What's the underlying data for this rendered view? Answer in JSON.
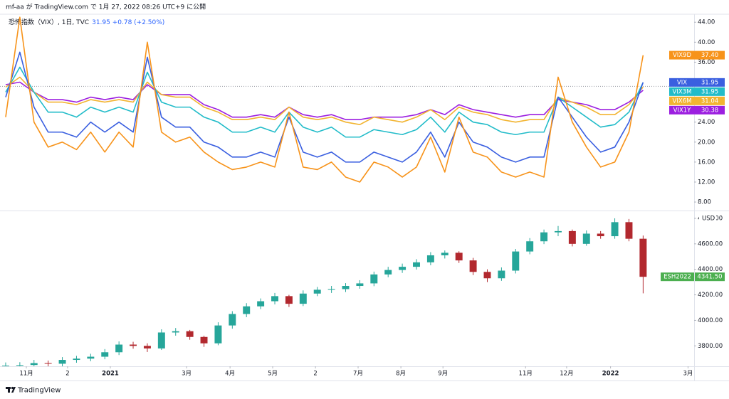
{
  "header": {
    "text": "mf-aa が TradingView.com で 1月 27, 2022 08:26 UTC+9 に公開"
  },
  "footer": {
    "brand": "TradingView"
  },
  "chart_data": [
    {
      "type": "line",
      "legend_title": "恐怖指数（VIX）, 1日, TVC",
      "legend_value": "31.95 +0.78 (+2.50%)",
      "legend_value_color": "#2962ff",
      "prev_close": 31.17,
      "xlim": [
        -0.4,
        48.6
      ],
      "ylim": [
        6.3,
        45.6
      ],
      "yticks": [
        {
          "value": 8,
          "label": "8.00"
        },
        {
          "value": 12,
          "label": "12.00"
        },
        {
          "value": 16,
          "label": "16.00"
        },
        {
          "value": 20,
          "label": "20.00"
        },
        {
          "value": 24,
          "label": "24.00"
        },
        {
          "value": 36,
          "label": "36.00"
        },
        {
          "value": 40,
          "label": "40.00"
        },
        {
          "value": 44,
          "label": "44.00"
        }
      ],
      "series": [
        {
          "name": "VIX9D",
          "color": "#f7931a",
          "last_label": "37.40",
          "values": [
            25,
            45,
            24,
            19,
            20,
            18.5,
            22,
            18,
            22,
            19,
            40,
            22,
            20,
            21,
            18,
            16,
            14.5,
            15,
            16,
            15,
            26,
            15,
            14.5,
            16,
            13,
            12,
            16,
            15,
            13,
            15,
            21,
            14,
            25,
            18,
            17,
            14,
            13,
            14,
            13,
            33,
            24,
            19,
            15,
            16,
            22,
            37.4
          ]
        },
        {
          "name": "VIX",
          "color": "#3a5fe0",
          "last_label": "31.95",
          "values": [
            29,
            38,
            27,
            22,
            22,
            21,
            24,
            22,
            24,
            22,
            37,
            25,
            23,
            23,
            20,
            19,
            17,
            17,
            18,
            17,
            25,
            18,
            17,
            18,
            16,
            16,
            18,
            17,
            16,
            18,
            22,
            17,
            24,
            20,
            19,
            17,
            16,
            17,
            17,
            29,
            25,
            21,
            18,
            19,
            24,
            31.95
          ]
        },
        {
          "name": "VIX3M",
          "color": "#22bcc9",
          "last_label": "31.95",
          "values": [
            30,
            35,
            30,
            26,
            26,
            25,
            27,
            26,
            27,
            26,
            34,
            28,
            27,
            27,
            25,
            24,
            22,
            22,
            23,
            22,
            26,
            23,
            22,
            23,
            21,
            21,
            22.5,
            22,
            21.5,
            22.5,
            25,
            22,
            26,
            24,
            23.5,
            22,
            21.5,
            22,
            22,
            29,
            27,
            25,
            23,
            23.5,
            26,
            31.95
          ]
        },
        {
          "name": "VIX6M",
          "color": "#f2b431",
          "last_label": "31.04",
          "values": [
            31,
            33,
            30,
            28,
            28,
            27.5,
            28.5,
            28,
            28.5,
            28,
            32,
            29.5,
            29,
            29,
            27,
            26,
            24.5,
            24.5,
            25,
            24.5,
            27,
            25,
            24.5,
            25,
            24,
            23.5,
            25,
            24.5,
            24,
            25,
            26.5,
            24.5,
            27,
            26,
            25.5,
            24.5,
            24,
            24.5,
            24.5,
            29,
            28,
            27,
            25.5,
            25.5,
            27.5,
            31.04
          ]
        },
        {
          "name": "VIX1Y",
          "color": "#9c1fe0",
          "last_label": "30.38",
          "values": [
            31.5,
            32,
            30,
            28.5,
            28.5,
            28,
            29,
            28.5,
            29,
            28.5,
            31.5,
            29.5,
            29.5,
            29.5,
            27.5,
            26.5,
            25,
            25,
            25.5,
            25,
            27,
            25.5,
            25,
            25.5,
            24.5,
            24.5,
            25,
            25,
            25,
            25.5,
            26.5,
            25.5,
            27.5,
            26.5,
            26,
            25.5,
            25,
            25.5,
            25.5,
            28.5,
            28,
            27.5,
            26.5,
            26.5,
            28,
            30.38
          ]
        }
      ]
    },
    {
      "type": "candlestick",
      "name": "ESH2022",
      "last_label": "4341.50",
      "tag_color": "#4caf50",
      "currency": "USD",
      "up_color": "#26a69a",
      "down_color": "#b2282e",
      "xlim": [
        -0.4,
        48.6
      ],
      "ylim": [
        3640,
        4850
      ],
      "yticks": [
        {
          "value": 3800,
          "label": "3800.00"
        },
        {
          "value": 4000,
          "label": "4000.00"
        },
        {
          "value": 4200,
          "label": "4200.00"
        },
        {
          "value": 4400,
          "label": "4400.00"
        },
        {
          "value": 4600,
          "label": "4600.00"
        },
        {
          "value": 4800,
          "label": "4800.00"
        }
      ],
      "xticks": [
        {
          "value": 1.46,
          "label": "11月"
        },
        {
          "value": 4.37,
          "label": "2"
        },
        {
          "value": 7.39,
          "label": "2021"
        },
        {
          "value": 12.77,
          "label": "3月"
        },
        {
          "value": 15.84,
          "label": "4月"
        },
        {
          "value": 18.85,
          "label": "5月"
        },
        {
          "value": 21.87,
          "label": "2"
        },
        {
          "value": 24.88,
          "label": "7月"
        },
        {
          "value": 27.9,
          "label": "8月"
        },
        {
          "value": 30.87,
          "label": "9月"
        },
        {
          "value": 36.7,
          "label": "11月"
        },
        {
          "value": 39.6,
          "label": "12月"
        },
        {
          "value": 42.7,
          "label": "2022"
        },
        {
          "value": 48.17,
          "label": "3月"
        }
      ],
      "open": [
        3640,
        3645,
        3650,
        3665,
        3660,
        3690,
        3700,
        3715,
        3750,
        3810,
        3800,
        3780,
        3905,
        3915,
        3870,
        3820,
        3960,
        4050,
        4110,
        4150,
        4190,
        4130,
        4210,
        4240,
        4245,
        4270,
        4290,
        4360,
        4395,
        4420,
        4455,
        4510,
        4530,
        4470,
        4380,
        4330,
        4390,
        4540,
        4620,
        4690,
        4700,
        4600,
        4680,
        4660,
        4770,
        4640
      ],
      "high": [
        3670,
        3672,
        3690,
        3685,
        3712,
        3722,
        3738,
        3775,
        3835,
        3832,
        3820,
        3930,
        3940,
        3925,
        3880,
        3985,
        4072,
        4135,
        4172,
        4215,
        4200,
        4235,
        4262,
        4270,
        4292,
        4315,
        4382,
        4420,
        4445,
        4480,
        4535,
        4548,
        4542,
        4490,
        4400,
        4415,
        4560,
        4645,
        4712,
        4740,
        4712,
        4705,
        4700,
        4800,
        4795,
        4665
      ],
      "low": [
        3620,
        3625,
        3632,
        3640,
        3640,
        3668,
        3680,
        3695,
        3728,
        3778,
        3752,
        3768,
        3880,
        3848,
        3792,
        3805,
        3935,
        4025,
        4088,
        4125,
        4105,
        4112,
        4190,
        4215,
        4222,
        4248,
        4268,
        4338,
        4372,
        4398,
        4432,
        4485,
        4450,
        4355,
        4300,
        4310,
        4368,
        4518,
        4598,
        4660,
        4580,
        4585,
        4640,
        4640,
        4620,
        4212
      ],
      "close": [
        3645,
        3650,
        3665,
        3660,
        3690,
        3700,
        3715,
        3750,
        3810,
        3800,
        3780,
        3905,
        3915,
        3870,
        3820,
        3960,
        4050,
        4110,
        4150,
        4190,
        4130,
        4210,
        4240,
        4245,
        4270,
        4290,
        4360,
        4395,
        4420,
        4455,
        4510,
        4530,
        4470,
        4380,
        4330,
        4390,
        4540,
        4620,
        4690,
        4700,
        4600,
        4680,
        4660,
        4770,
        4640,
        4341.5
      ]
    }
  ]
}
